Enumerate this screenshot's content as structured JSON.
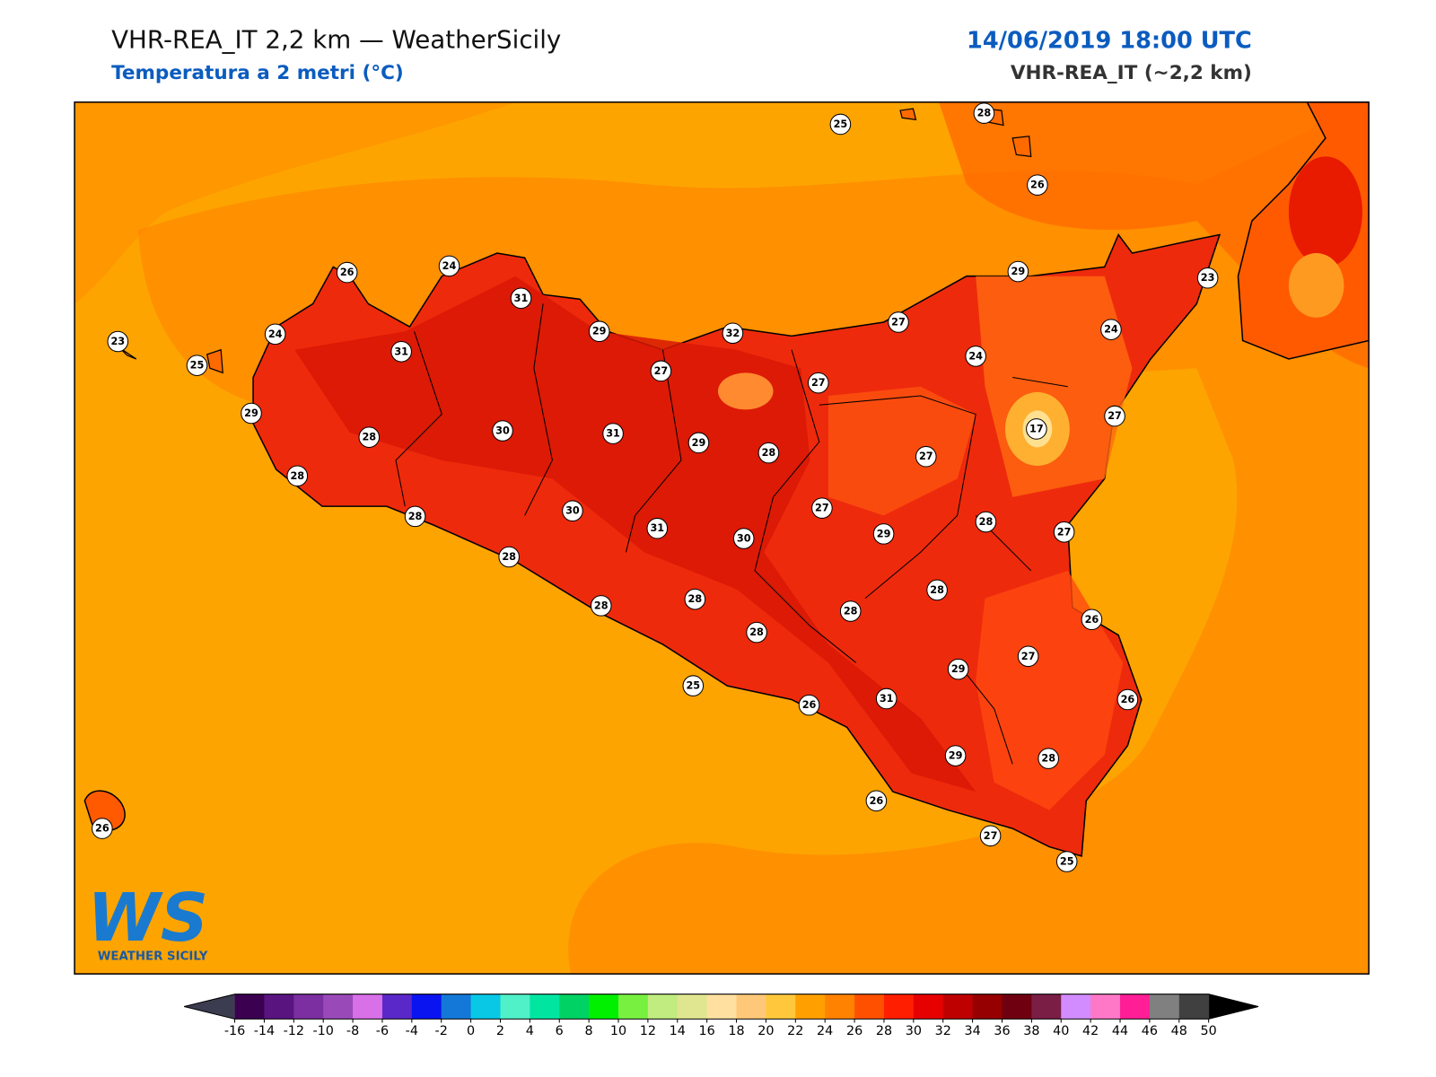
{
  "header": {
    "title": "VHR-REA_IT 2,2 km — WeatherSicily",
    "subtitle": "Temperatura a 2 metri (°C)",
    "datetime": "14/06/2019 18:00 UTC",
    "model": "VHR-REA_IT (~2,2 km)"
  },
  "logo": {
    "mark": "WS",
    "name": "WEATHER SICILY"
  },
  "stations": [
    25,
    28,
    26,
    26,
    24,
    31,
    29,
    32,
    27,
    29,
    23,
    24,
    23,
    24,
    31,
    25,
    27,
    27,
    24,
    29,
    28,
    30,
    31,
    29,
    28,
    27,
    17,
    27,
    28,
    28,
    30,
    27,
    31,
    30,
    29,
    28,
    27,
    28,
    28,
    28,
    28,
    28,
    28,
    26,
    25,
    26,
    31,
    29,
    27,
    26,
    29,
    28,
    26,
    27,
    25,
    26
  ],
  "colorbar": {
    "ticks": [
      -16,
      -14,
      -12,
      -10,
      -8,
      -6,
      -4,
      -2,
      0,
      2,
      4,
      6,
      8,
      10,
      12,
      14,
      16,
      18,
      20,
      22,
      24,
      26,
      28,
      30,
      32,
      34,
      36,
      38,
      40,
      42,
      44,
      46,
      48,
      50
    ],
    "colors": [
      "#3b0050",
      "#5a1480",
      "#7b2fa0",
      "#9a4ab8",
      "#d870e8",
      "#5a28c8",
      "#0a14f0",
      "#1478d8",
      "#08c8e6",
      "#50f0c8",
      "#00e6a0",
      "#00d264",
      "#00f000",
      "#78f040",
      "#c0ec80",
      "#e0e690",
      "#ffe0a0",
      "#ffc878",
      "#ffc83c",
      "#ffa000",
      "#ff8200",
      "#ff5000",
      "#ff1e00",
      "#e60000",
      "#be0000",
      "#960000",
      "#6e0010",
      "#7a1e46",
      "#d28cff",
      "#ff78c8",
      "#ff1e96",
      "#808080",
      "#404040"
    ],
    "under": "#3c3c50",
    "over": "#000000"
  }
}
